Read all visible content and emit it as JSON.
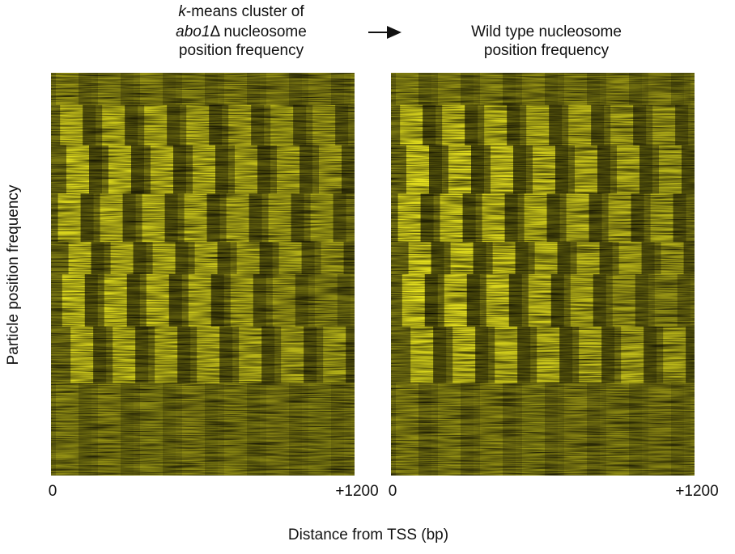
{
  "panels": [
    {
      "title_lines": [
        [
          {
            "text": "k",
            "italic": true
          },
          {
            "text": "-means cluster of",
            "italic": false
          }
        ],
        [
          {
            "text": "abo1",
            "italic": true
          },
          {
            "text": "Δ nucleosome",
            "italic": false
          }
        ],
        [
          {
            "text": "position frequency",
            "italic": false
          }
        ]
      ],
      "x_start": "0",
      "x_end": "+1200"
    },
    {
      "title_lines": [
        [
          {
            "text": "Wild type nucleosome",
            "italic": false
          }
        ],
        [
          {
            "text": "position frequency",
            "italic": false
          }
        ]
      ],
      "x_start": "0",
      "x_end": "+1200"
    }
  ],
  "y_label": "Particle position frequency",
  "x_label": "Distance from TSS (bp)"
}
